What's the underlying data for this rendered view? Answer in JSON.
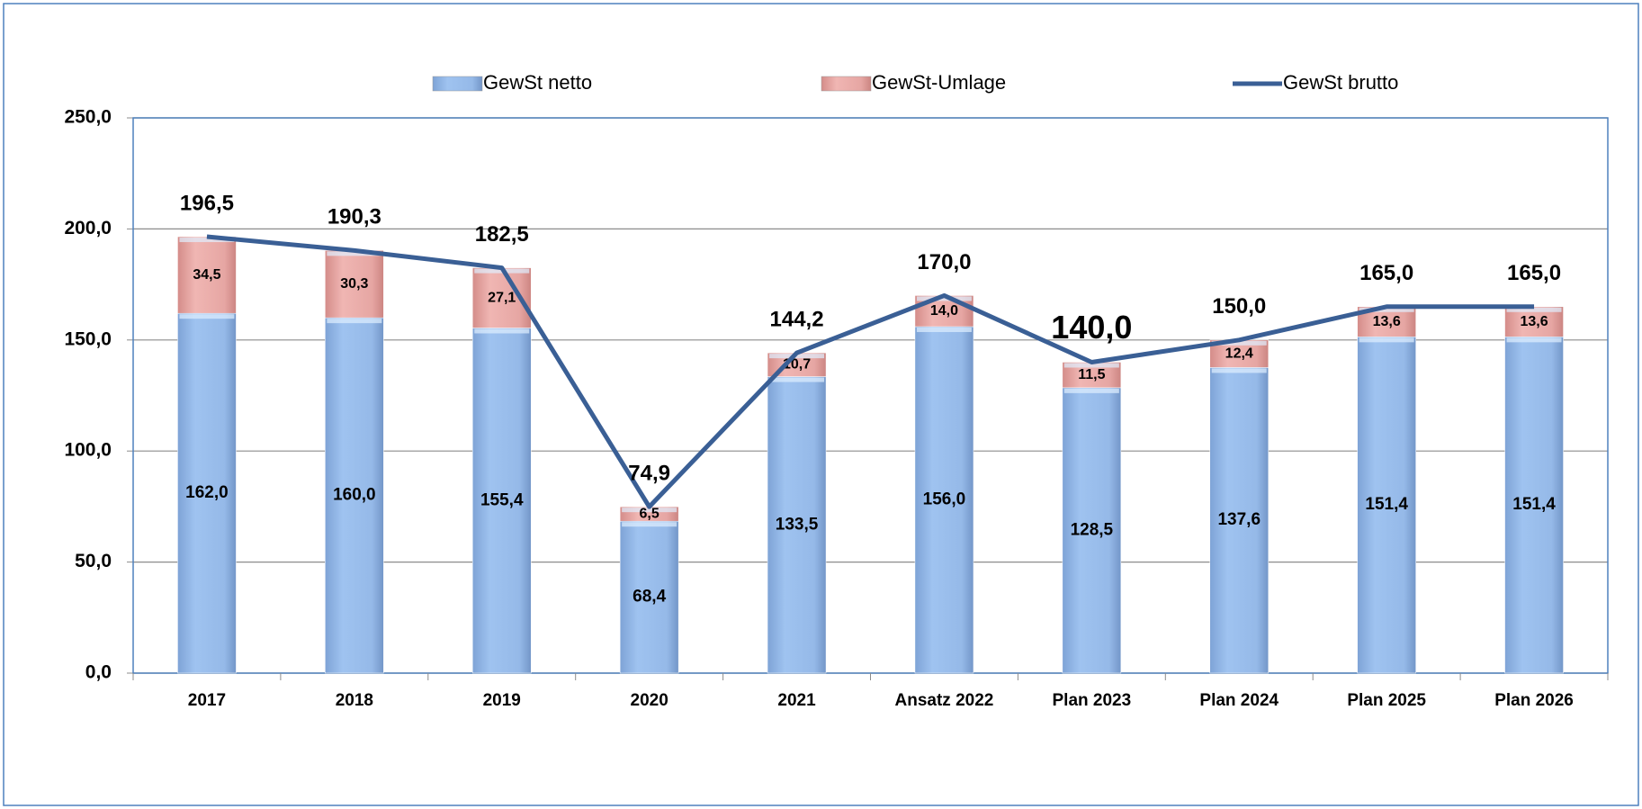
{
  "chart_data": {
    "type": "bar",
    "categories": [
      "2017",
      "2018",
      "2019",
      "2020",
      "2021",
      "Ansatz 2022",
      "Plan 2023",
      "Plan 2024",
      "Plan 2025",
      "Plan 2026"
    ],
    "series": [
      {
        "name": "GewSt netto",
        "type": "bar",
        "color": "#95b9e8",
        "values": [
          162.0,
          160.0,
          155.4,
          68.4,
          133.5,
          156.0,
          128.5,
          137.6,
          151.4,
          151.4
        ],
        "value_labels": [
          "162,0",
          "160,0",
          "155,4",
          "68,4",
          "133,5",
          "156,0",
          "128,5",
          "137,6",
          "151,4",
          "151,4"
        ]
      },
      {
        "name": "GewSt-Umlage",
        "type": "bar",
        "color": "#e6a6a3",
        "values": [
          34.5,
          30.3,
          27.1,
          6.5,
          10.7,
          14.0,
          11.5,
          12.4,
          13.6,
          13.6
        ],
        "value_labels": [
          "34,5",
          "30,3",
          "27,1",
          "6,5",
          "10,7",
          "14,0",
          "11,5",
          "12,4",
          "13,6",
          "13,6"
        ]
      },
      {
        "name": "GewSt brutto",
        "type": "line",
        "color": "#3a5f95",
        "values": [
          196.5,
          190.3,
          182.5,
          74.9,
          144.2,
          170.0,
          140.0,
          150.0,
          165.0,
          165.0
        ],
        "value_labels": [
          "196,5",
          "190,3",
          "182,5",
          "74,9",
          "144,2",
          "170,0",
          "140,0",
          "150,0",
          "165,0",
          "165,0"
        ]
      }
    ],
    "ylim": [
      0,
      250
    ],
    "yticks": [
      {
        "value": 0,
        "label": "0,0"
      },
      {
        "value": 50,
        "label": "50,0"
      },
      {
        "value": 100,
        "label": "100,0"
      },
      {
        "value": 150,
        "label": "150,0"
      },
      {
        "value": 200,
        "label": "200,0"
      },
      {
        "value": 250,
        "label": "250,0"
      }
    ],
    "grid": true,
    "stacked": true,
    "legend": "top"
  }
}
